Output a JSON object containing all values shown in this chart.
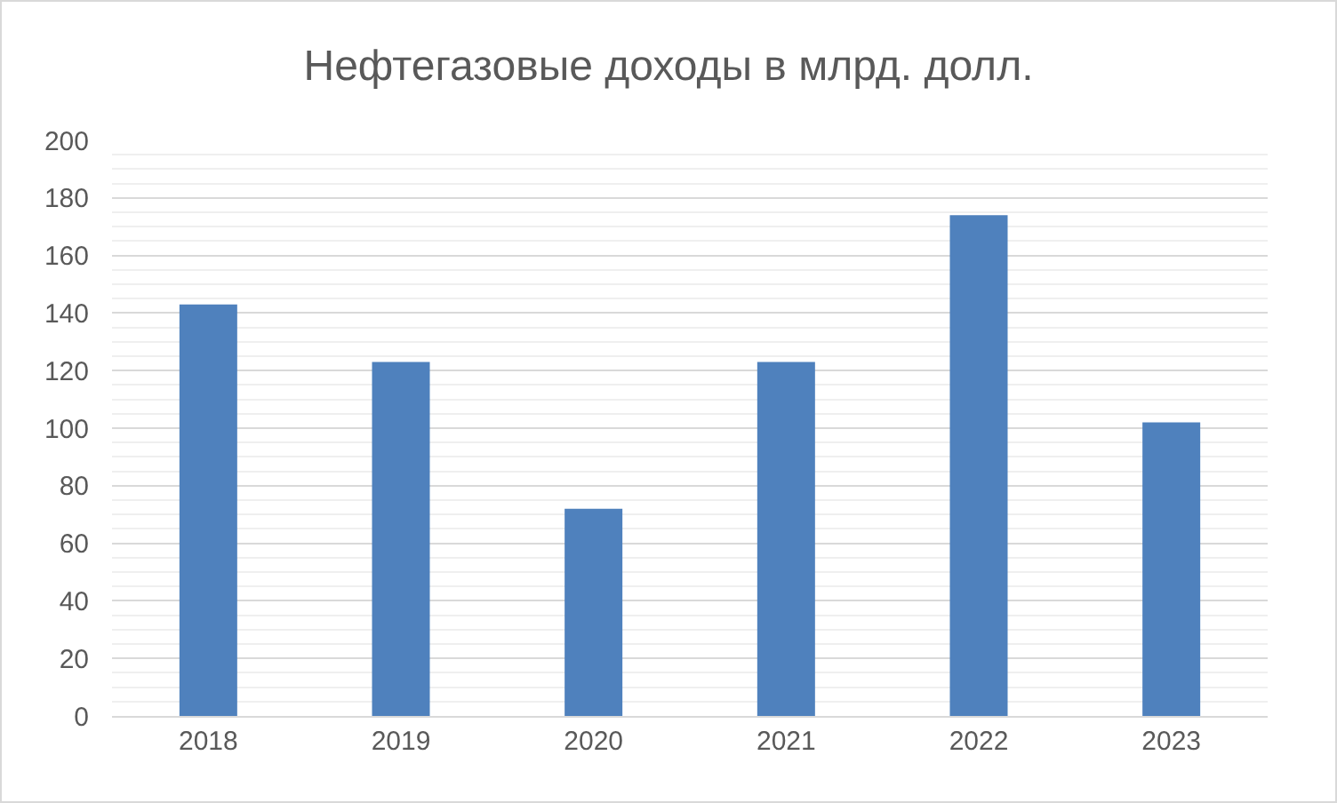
{
  "chart_data": {
    "type": "bar",
    "title": "Нефтегазовые доходы в млрд. долл.",
    "categories": [
      "2018",
      "2019",
      "2020",
      "2021",
      "2022",
      "2023"
    ],
    "values": [
      143,
      123,
      72,
      123,
      174,
      102
    ],
    "color": "#4f81bd",
    "ylim": [
      0,
      200
    ],
    "yticks": [
      0,
      20,
      40,
      60,
      80,
      100,
      120,
      140,
      160,
      180,
      200
    ],
    "grid": true
  }
}
